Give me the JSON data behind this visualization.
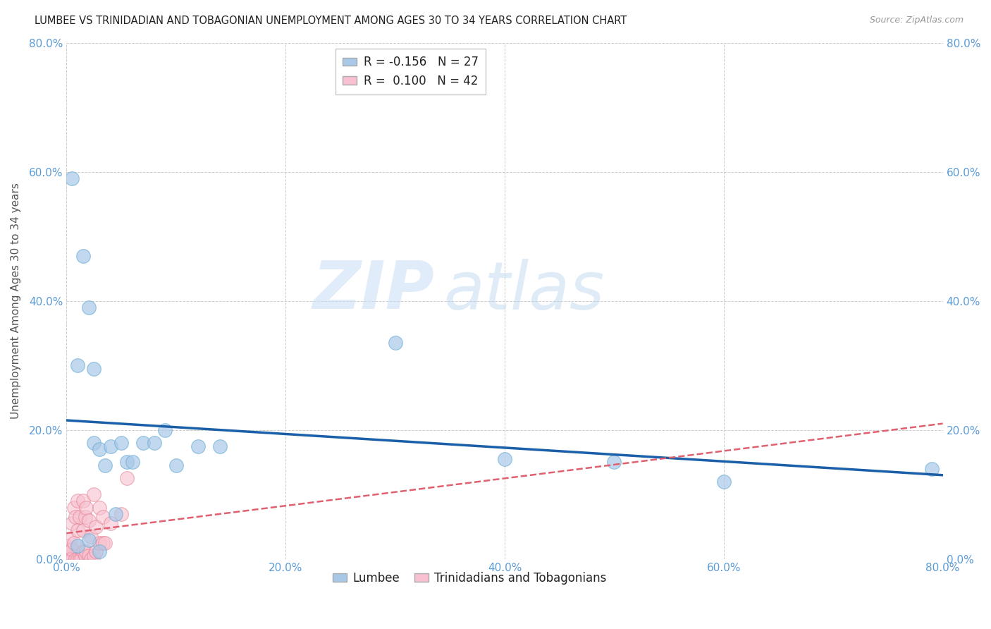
{
  "title": "LUMBEE VS TRINIDADIAN AND TOBAGONIAN UNEMPLOYMENT AMONG AGES 30 TO 34 YEARS CORRELATION CHART",
  "source": "Source: ZipAtlas.com",
  "ylabel": "Unemployment Among Ages 30 to 34 years",
  "xlim": [
    0.0,
    0.8
  ],
  "ylim": [
    0.0,
    0.8
  ],
  "xticks": [
    0.0,
    0.2,
    0.4,
    0.6,
    0.8
  ],
  "yticks": [
    0.0,
    0.2,
    0.4,
    0.6,
    0.8
  ],
  "xticklabels": [
    "0.0%",
    "20.0%",
    "40.0%",
    "60.0%",
    "80.0%"
  ],
  "yticklabels": [
    "0.0%",
    "20.0%",
    "40.0%",
    "60.0%",
    "80.0%"
  ],
  "legend_R_label_1": "R = -0.156",
  "legend_N_label_1": "N = 27",
  "legend_R_label_2": "R =  0.100",
  "legend_N_label_2": "N = 42",
  "lumbee_scatter_x": [
    0.005,
    0.01,
    0.01,
    0.015,
    0.02,
    0.02,
    0.025,
    0.025,
    0.03,
    0.03,
    0.035,
    0.04,
    0.045,
    0.05,
    0.055,
    0.06,
    0.07,
    0.08,
    0.09,
    0.1,
    0.12,
    0.14,
    0.3,
    0.4,
    0.5,
    0.6,
    0.79
  ],
  "lumbee_scatter_y": [
    0.59,
    0.3,
    0.02,
    0.47,
    0.39,
    0.029,
    0.18,
    0.295,
    0.17,
    0.012,
    0.145,
    0.175,
    0.07,
    0.18,
    0.15,
    0.15,
    0.18,
    0.18,
    0.2,
    0.145,
    0.175,
    0.175,
    0.335,
    0.155,
    0.15,
    0.12,
    0.14
  ],
  "lumbee_line_x0": 0.0,
  "lumbee_line_y0": 0.215,
  "lumbee_line_x1": 0.8,
  "lumbee_line_y1": 0.13,
  "lumbee_color": "#a8c8e8",
  "lumbee_edge_color": "#6aaed6",
  "lumbee_line_color": "#1a5fa8",
  "trinidadian_scatter_x": [
    0.0,
    0.0,
    0.0,
    0.0,
    0.003,
    0.003,
    0.005,
    0.005,
    0.005,
    0.007,
    0.007,
    0.008,
    0.008,
    0.01,
    0.01,
    0.01,
    0.012,
    0.012,
    0.013,
    0.015,
    0.015,
    0.015,
    0.017,
    0.017,
    0.018,
    0.018,
    0.02,
    0.02,
    0.022,
    0.022,
    0.025,
    0.025,
    0.027,
    0.027,
    0.03,
    0.03,
    0.033,
    0.033,
    0.035,
    0.04,
    0.05,
    0.055
  ],
  "trinidadian_scatter_y": [
    0.0,
    0.005,
    0.01,
    0.02,
    0.0,
    0.03,
    0.0,
    0.015,
    0.055,
    0.025,
    0.08,
    0.0,
    0.065,
    0.0,
    0.045,
    0.09,
    0.0,
    0.065,
    0.0,
    0.012,
    0.045,
    0.09,
    0.005,
    0.065,
    0.012,
    0.08,
    0.005,
    0.06,
    0.0,
    0.035,
    0.005,
    0.1,
    0.012,
    0.05,
    0.025,
    0.08,
    0.025,
    0.065,
    0.025,
    0.055,
    0.07,
    0.125
  ],
  "trinidadian_line_x0": 0.0,
  "trinidadian_line_y0": 0.04,
  "trinidadian_line_x1": 0.8,
  "trinidadian_line_y1": 0.21,
  "trinidadian_color": "#f8c0d0",
  "trinidadian_edge_color": "#e08090",
  "trinidadian_line_color": "#e06070",
  "watermark_zip": "ZIP",
  "watermark_atlas": "atlas",
  "background_color": "#ffffff",
  "grid_color": "#cccccc",
  "tick_color": "#5b9bd5",
  "legend_label_1": "Lumbee",
  "legend_label_2": "Trinidadians and Tobagonians"
}
